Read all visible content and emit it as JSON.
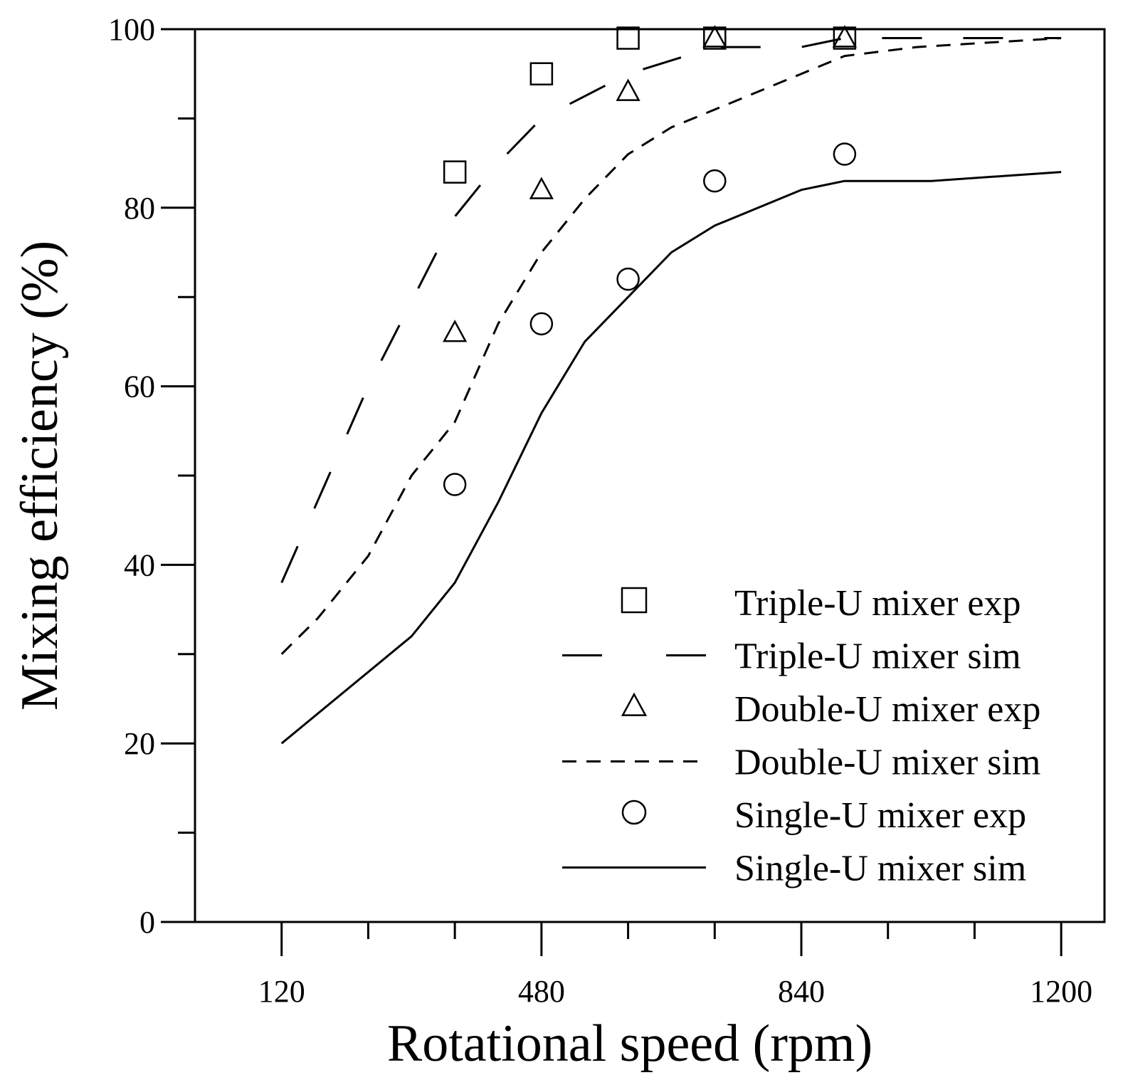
{
  "chart_data": {
    "type": "line",
    "title": "",
    "xlabel": "Rotational speed (rpm)",
    "ylabel": "Mixing efficiency (%)",
    "xlim": [
      0,
      1260
    ],
    "ylim": [
      0,
      100
    ],
    "x_ticks_major": [
      120,
      480,
      840,
      1200
    ],
    "x_ticks_minor": [
      240,
      360,
      600,
      720,
      960,
      1080
    ],
    "y_ticks_major": [
      0,
      20,
      40,
      60,
      80,
      100
    ],
    "y_ticks_minor": [
      10,
      30,
      50,
      70,
      90
    ],
    "grid": false,
    "legend_position": "bottom-right",
    "series": [
      {
        "name": "Triple-U mixer exp",
        "kind": "markers",
        "marker": "square",
        "x": [
          360,
          480,
          600,
          720,
          900
        ],
        "y": [
          84,
          95,
          99,
          99,
          99
        ]
      },
      {
        "name": "Triple-U mixer sim",
        "kind": "line",
        "dash": "long",
        "x": [
          120,
          240,
          360,
          420,
          480,
          600,
          720,
          840,
          900,
          1080,
          1200
        ],
        "y": [
          38,
          60,
          79,
          85,
          90,
          95,
          98,
          98,
          99,
          99,
          99
        ]
      },
      {
        "name": "Double-U mixer exp",
        "kind": "markers",
        "marker": "triangle",
        "x": [
          360,
          480,
          600,
          720,
          900
        ],
        "y": [
          66,
          82,
          93,
          99,
          99
        ]
      },
      {
        "name": "Double-U mixer sim",
        "kind": "line",
        "dash": "short",
        "x": [
          120,
          170,
          240,
          300,
          360,
          420,
          480,
          540,
          600,
          660,
          720,
          840,
          900,
          1000,
          1100,
          1200
        ],
        "y": [
          30,
          34,
          41,
          50,
          56,
          67,
          75,
          81,
          86,
          89,
          91,
          95,
          97,
          98,
          98.5,
          99
        ]
      },
      {
        "name": "Single-U mixer exp",
        "kind": "markers",
        "marker": "circle",
        "x": [
          360,
          480,
          600,
          720,
          900
        ],
        "y": [
          49,
          67,
          72,
          83,
          86
        ]
      },
      {
        "name": "Single-U mixer sim",
        "kind": "line",
        "dash": "solid",
        "x": [
          120,
          300,
          360,
          420,
          480,
          540,
          600,
          660,
          720,
          840,
          900,
          1020,
          1200
        ],
        "y": [
          20,
          32,
          38,
          47,
          57,
          65,
          70,
          75,
          78,
          82,
          83,
          83,
          84
        ]
      }
    ]
  }
}
